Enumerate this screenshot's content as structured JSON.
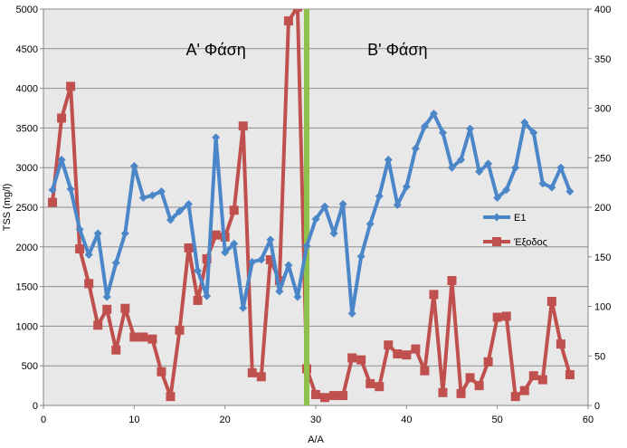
{
  "chart_data": {
    "type": "line",
    "xlabel": "Α/Α",
    "ylabel": "TSS (mg/l)",
    "xlim": [
      0,
      60
    ],
    "ylim": [
      0,
      5000
    ],
    "y2lim": [
      0,
      400
    ],
    "x_ticks": [
      0,
      10,
      20,
      30,
      40,
      50,
      60
    ],
    "y_ticks": [
      0,
      500,
      1000,
      1500,
      2000,
      2500,
      3000,
      3500,
      4000,
      4500,
      5000
    ],
    "y2_ticks": [
      0,
      50,
      100,
      150,
      200,
      250,
      300,
      350,
      400
    ],
    "grid": "horizontal",
    "legend_position": "right",
    "background": "#e8e8e8",
    "phase_divider": {
      "x": 29,
      "color": "#8fc04a"
    },
    "annotations": [
      {
        "text": "Α' Φάση",
        "x": 19,
        "y": 4500
      },
      {
        "text": "Β' Φάση",
        "x": 39,
        "y": 4500
      }
    ],
    "series": [
      {
        "name": "Ε1",
        "axis": "left",
        "color": "#4a86c8",
        "marker": "diamond",
        "x": [
          1,
          2,
          3,
          4,
          5,
          6,
          7,
          8,
          9,
          10,
          11,
          12,
          13,
          14,
          15,
          16,
          17,
          18,
          19,
          20,
          21,
          22,
          23,
          24,
          25,
          26,
          27,
          28,
          29,
          30,
          31,
          32,
          33,
          34,
          35,
          36,
          37,
          38,
          39,
          40,
          41,
          42,
          43,
          44,
          45,
          46,
          47,
          48,
          49,
          50,
          51,
          52,
          53,
          54,
          55,
          56,
          57,
          58
        ],
        "values": [
          2720,
          3100,
          2730,
          2220,
          1900,
          2170,
          1370,
          1800,
          2170,
          3020,
          2620,
          2650,
          2700,
          2340,
          2450,
          2540,
          1700,
          1380,
          3380,
          1930,
          2040,
          1230,
          1810,
          1840,
          2090,
          1440,
          1770,
          1370,
          2010,
          2350,
          2510,
          2170,
          2540,
          1160,
          1880,
          2290,
          2640,
          3100,
          2530,
          2760,
          3240,
          3520,
          3680,
          3440,
          3000,
          3100,
          3490,
          2950,
          3050,
          2620,
          2720,
          3000,
          3570,
          3440,
          2800,
          2750,
          3000,
          2700
        ]
      },
      {
        "name": "Έξοδος",
        "axis": "right",
        "color": "#c0504d",
        "marker": "square",
        "x": [
          1,
          2,
          3,
          4,
          5,
          6,
          7,
          8,
          9,
          10,
          11,
          12,
          13,
          14,
          15,
          16,
          17,
          18,
          19,
          20,
          21,
          22,
          23,
          24,
          25,
          26,
          27,
          28,
          29,
          30,
          31,
          32,
          33,
          34,
          35,
          36,
          37,
          38,
          39,
          40,
          41,
          42,
          43,
          44,
          45,
          46,
          47,
          48,
          49,
          50,
          51,
          52,
          53,
          54,
          55,
          56,
          57,
          58
        ],
        "values": [
          205,
          290,
          322,
          158,
          123,
          81,
          97,
          56,
          98,
          69,
          69,
          67,
          34,
          9,
          76,
          159,
          106,
          148,
          172,
          170,
          197,
          282,
          33,
          29,
          147,
          126,
          388,
          402,
          37,
          11,
          8,
          10,
          10,
          48,
          46,
          22,
          19,
          61,
          52,
          51,
          57,
          35,
          112,
          13,
          126,
          12,
          28,
          20,
          44,
          89,
          90,
          9,
          15,
          30,
          26,
          105,
          62,
          31
        ]
      }
    ]
  }
}
